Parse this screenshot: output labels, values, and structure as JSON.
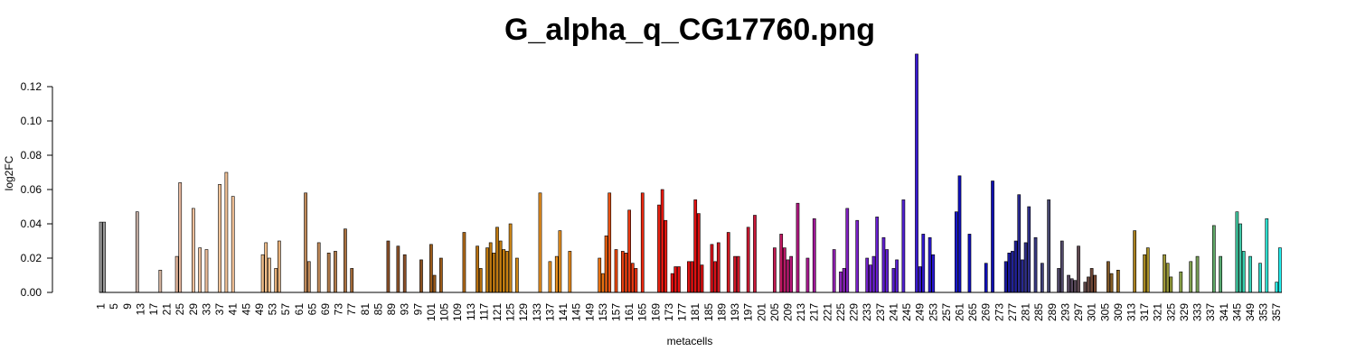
{
  "chart_data": {
    "type": "bar",
    "title": "G_alpha_q_CG17760.png",
    "xlabel": "metacells",
    "ylabel": "log2FC",
    "ylim": [
      0,
      0.14
    ],
    "yticks": [
      0.0,
      0.02,
      0.04,
      0.06,
      0.08,
      0.1,
      0.12
    ],
    "ytick_labels": [
      "0.00",
      "0.02",
      "0.04",
      "0.06",
      "0.08",
      "0.10",
      "0.12"
    ],
    "n_bars": 358,
    "xtick_labels": [
      "1",
      "5",
      "9",
      "13",
      "17",
      "21",
      "25",
      "29",
      "33",
      "37",
      "41",
      "45",
      "49",
      "53",
      "57",
      "61",
      "65",
      "69",
      "73",
      "77",
      "81",
      "85",
      "89",
      "93",
      "97",
      "101",
      "105",
      "109",
      "113",
      "117",
      "121",
      "125",
      "129",
      "133",
      "137",
      "141",
      "145",
      "149",
      "153",
      "157",
      "161",
      "165",
      "169",
      "173",
      "177",
      "181",
      "185",
      "189",
      "193",
      "197",
      "201",
      "205",
      "209",
      "213",
      "217",
      "221",
      "225",
      "229",
      "233",
      "237",
      "241",
      "245",
      "249",
      "253",
      "257",
      "261",
      "265",
      "269",
      "273",
      "277",
      "281",
      "285",
      "289",
      "293",
      "297",
      "301",
      "305",
      "309",
      "313",
      "317",
      "321",
      "325",
      "329",
      "333",
      "337",
      "341",
      "345",
      "349",
      "353",
      "357"
    ],
    "grid": false,
    "legend": "none",
    "bars": [
      {
        "x": 1,
        "y": 0.041,
        "color": "#999999"
      },
      {
        "x": 2,
        "y": 0.041,
        "color": "#999999"
      },
      {
        "x": 12,
        "y": 0.047,
        "color": "#c0aaa0"
      },
      {
        "x": 19,
        "y": 0.013,
        "color": "#d4b39e"
      },
      {
        "x": 24,
        "y": 0.021,
        "color": "#e6b89e"
      },
      {
        "x": 25,
        "y": 0.064,
        "color": "#e6b89e"
      },
      {
        "x": 29,
        "y": 0.049,
        "color": "#edbf9c"
      },
      {
        "x": 31,
        "y": 0.026,
        "color": "#edbf9c"
      },
      {
        "x": 33,
        "y": 0.025,
        "color": "#edbf9c"
      },
      {
        "x": 37,
        "y": 0.063,
        "color": "#f2c297"
      },
      {
        "x": 39,
        "y": 0.07,
        "color": "#f2c297"
      },
      {
        "x": 41,
        "y": 0.056,
        "color": "#f2c297"
      },
      {
        "x": 50,
        "y": 0.022,
        "color": "#f0be8a"
      },
      {
        "x": 51,
        "y": 0.029,
        "color": "#f0be8a"
      },
      {
        "x": 52,
        "y": 0.02,
        "color": "#f0be8a"
      },
      {
        "x": 54,
        "y": 0.014,
        "color": "#e6b07a"
      },
      {
        "x": 55,
        "y": 0.03,
        "color": "#e6b07a"
      },
      {
        "x": 63,
        "y": 0.058,
        "color": "#c08a5a"
      },
      {
        "x": 64,
        "y": 0.018,
        "color": "#c08a5a"
      },
      {
        "x": 67,
        "y": 0.029,
        "color": "#c08a5a"
      },
      {
        "x": 70,
        "y": 0.023,
        "color": "#b07a4a"
      },
      {
        "x": 72,
        "y": 0.024,
        "color": "#b07a4a"
      },
      {
        "x": 75,
        "y": 0.037,
        "color": "#a87040"
      },
      {
        "x": 77,
        "y": 0.014,
        "color": "#a06838"
      },
      {
        "x": 88,
        "y": 0.03,
        "color": "#8a5028"
      },
      {
        "x": 91,
        "y": 0.027,
        "color": "#8a5028"
      },
      {
        "x": 93,
        "y": 0.022,
        "color": "#8a5028"
      },
      {
        "x": 98,
        "y": 0.019,
        "color": "#8a5020"
      },
      {
        "x": 101,
        "y": 0.028,
        "color": "#9a5a1a"
      },
      {
        "x": 102,
        "y": 0.01,
        "color": "#9a5a1a"
      },
      {
        "x": 104,
        "y": 0.02,
        "color": "#9a5a1a"
      },
      {
        "x": 111,
        "y": 0.035,
        "color": "#b06a18"
      },
      {
        "x": 115,
        "y": 0.027,
        "color": "#b87010"
      },
      {
        "x": 116,
        "y": 0.014,
        "color": "#b87010"
      },
      {
        "x": 118,
        "y": 0.026,
        "color": "#c07a10"
      },
      {
        "x": 119,
        "y": 0.029,
        "color": "#c07a10"
      },
      {
        "x": 120,
        "y": 0.023,
        "color": "#c07a10"
      },
      {
        "x": 121,
        "y": 0.038,
        "color": "#c07a10"
      },
      {
        "x": 122,
        "y": 0.03,
        "color": "#c88010"
      },
      {
        "x": 123,
        "y": 0.025,
        "color": "#c88010"
      },
      {
        "x": 124,
        "y": 0.024,
        "color": "#c88010"
      },
      {
        "x": 125,
        "y": 0.04,
        "color": "#d08818"
      },
      {
        "x": 127,
        "y": 0.02,
        "color": "#d08818"
      },
      {
        "x": 134,
        "y": 0.058,
        "color": "#e89020"
      },
      {
        "x": 137,
        "y": 0.018,
        "color": "#e89020"
      },
      {
        "x": 139,
        "y": 0.021,
        "color": "#e89020"
      },
      {
        "x": 140,
        "y": 0.036,
        "color": "#e89020"
      },
      {
        "x": 143,
        "y": 0.024,
        "color": "#e88818"
      },
      {
        "x": 152,
        "y": 0.02,
        "color": "#e87010"
      },
      {
        "x": 153,
        "y": 0.011,
        "color": "#e87010"
      },
      {
        "x": 154,
        "y": 0.033,
        "color": "#e86010"
      },
      {
        "x": 155,
        "y": 0.058,
        "color": "#e85010"
      },
      {
        "x": 157,
        "y": 0.025,
        "color": "#e84810"
      },
      {
        "x": 159,
        "y": 0.024,
        "color": "#e84010"
      },
      {
        "x": 160,
        "y": 0.023,
        "color": "#e84010"
      },
      {
        "x": 161,
        "y": 0.048,
        "color": "#e83810"
      },
      {
        "x": 162,
        "y": 0.017,
        "color": "#e83810"
      },
      {
        "x": 163,
        "y": 0.014,
        "color": "#e83010"
      },
      {
        "x": 165,
        "y": 0.058,
        "color": "#e82810"
      },
      {
        "x": 170,
        "y": 0.051,
        "color": "#e82010"
      },
      {
        "x": 171,
        "y": 0.06,
        "color": "#e81810"
      },
      {
        "x": 172,
        "y": 0.042,
        "color": "#e81810"
      },
      {
        "x": 174,
        "y": 0.011,
        "color": "#e81010"
      },
      {
        "x": 175,
        "y": 0.015,
        "color": "#e81010"
      },
      {
        "x": 176,
        "y": 0.015,
        "color": "#e81010"
      },
      {
        "x": 179,
        "y": 0.018,
        "color": "#e01010"
      },
      {
        "x": 180,
        "y": 0.018,
        "color": "#e01010"
      },
      {
        "x": 181,
        "y": 0.054,
        "color": "#e01010"
      },
      {
        "x": 182,
        "y": 0.046,
        "color": "#d81010"
      },
      {
        "x": 183,
        "y": 0.016,
        "color": "#d81010"
      },
      {
        "x": 186,
        "y": 0.028,
        "color": "#d81018"
      },
      {
        "x": 187,
        "y": 0.018,
        "color": "#d81018"
      },
      {
        "x": 188,
        "y": 0.029,
        "color": "#d01820"
      },
      {
        "x": 191,
        "y": 0.035,
        "color": "#d01820"
      },
      {
        "x": 193,
        "y": 0.021,
        "color": "#d01828"
      },
      {
        "x": 194,
        "y": 0.021,
        "color": "#d01828"
      },
      {
        "x": 197,
        "y": 0.038,
        "color": "#c81830"
      },
      {
        "x": 199,
        "y": 0.045,
        "color": "#c81838"
      },
      {
        "x": 205,
        "y": 0.026,
        "color": "#c01850"
      },
      {
        "x": 207,
        "y": 0.034,
        "color": "#c01860"
      },
      {
        "x": 208,
        "y": 0.026,
        "color": "#b81868"
      },
      {
        "x": 209,
        "y": 0.019,
        "color": "#b81870"
      },
      {
        "x": 210,
        "y": 0.021,
        "color": "#b81878"
      },
      {
        "x": 212,
        "y": 0.052,
        "color": "#b01880"
      },
      {
        "x": 215,
        "y": 0.02,
        "color": "#a81890"
      },
      {
        "x": 217,
        "y": 0.043,
        "color": "#a01898"
      },
      {
        "x": 223,
        "y": 0.025,
        "color": "#9020b0"
      },
      {
        "x": 225,
        "y": 0.012,
        "color": "#8820b8"
      },
      {
        "x": 226,
        "y": 0.014,
        "color": "#8820b8"
      },
      {
        "x": 227,
        "y": 0.049,
        "color": "#8020c0"
      },
      {
        "x": 230,
        "y": 0.042,
        "color": "#7820c8"
      },
      {
        "x": 233,
        "y": 0.02,
        "color": "#7020c8"
      },
      {
        "x": 234,
        "y": 0.016,
        "color": "#7020d0"
      },
      {
        "x": 235,
        "y": 0.021,
        "color": "#6820d0"
      },
      {
        "x": 236,
        "y": 0.044,
        "color": "#6820d0"
      },
      {
        "x": 238,
        "y": 0.032,
        "color": "#6020d0"
      },
      {
        "x": 239,
        "y": 0.025,
        "color": "#6020d0"
      },
      {
        "x": 241,
        "y": 0.014,
        "color": "#5820d0"
      },
      {
        "x": 242,
        "y": 0.019,
        "color": "#5820d0"
      },
      {
        "x": 244,
        "y": 0.054,
        "color": "#5020d0"
      },
      {
        "x": 248,
        "y": 0.139,
        "color": "#3818d0"
      },
      {
        "x": 249,
        "y": 0.015,
        "color": "#3818d0"
      },
      {
        "x": 250,
        "y": 0.034,
        "color": "#3018d0"
      },
      {
        "x": 252,
        "y": 0.032,
        "color": "#2818d0"
      },
      {
        "x": 253,
        "y": 0.022,
        "color": "#2818d0"
      },
      {
        "x": 260,
        "y": 0.047,
        "color": "#1818c8"
      },
      {
        "x": 261,
        "y": 0.068,
        "color": "#1010c0"
      },
      {
        "x": 264,
        "y": 0.034,
        "color": "#1010c0"
      },
      {
        "x": 269,
        "y": 0.017,
        "color": "#1010b8"
      },
      {
        "x": 271,
        "y": 0.065,
        "color": "#1010b0"
      },
      {
        "x": 275,
        "y": 0.018,
        "color": "#1818a0"
      },
      {
        "x": 276,
        "y": 0.023,
        "color": "#1818a0"
      },
      {
        "x": 277,
        "y": 0.024,
        "color": "#202098"
      },
      {
        "x": 278,
        "y": 0.03,
        "color": "#202098"
      },
      {
        "x": 279,
        "y": 0.057,
        "color": "#282890"
      },
      {
        "x": 280,
        "y": 0.019,
        "color": "#282890"
      },
      {
        "x": 281,
        "y": 0.029,
        "color": "#303088"
      },
      {
        "x": 282,
        "y": 0.05,
        "color": "#303088"
      },
      {
        "x": 284,
        "y": 0.032,
        "color": "#383880"
      },
      {
        "x": 286,
        "y": 0.017,
        "color": "#404078"
      },
      {
        "x": 288,
        "y": 0.054,
        "color": "#484870"
      },
      {
        "x": 291,
        "y": 0.014,
        "color": "#504868"
      },
      {
        "x": 292,
        "y": 0.03,
        "color": "#504868"
      },
      {
        "x": 294,
        "y": 0.01,
        "color": "#584860"
      },
      {
        "x": 295,
        "y": 0.008,
        "color": "#584860"
      },
      {
        "x": 296,
        "y": 0.007,
        "color": "#584858"
      },
      {
        "x": 297,
        "y": 0.027,
        "color": "#604850"
      },
      {
        "x": 299,
        "y": 0.006,
        "color": "#604848"
      },
      {
        "x": 300,
        "y": 0.009,
        "color": "#684840"
      },
      {
        "x": 301,
        "y": 0.014,
        "color": "#704838"
      },
      {
        "x": 302,
        "y": 0.01,
        "color": "#784830"
      },
      {
        "x": 306,
        "y": 0.018,
        "color": "#805828"
      },
      {
        "x": 307,
        "y": 0.011,
        "color": "#886028"
      },
      {
        "x": 309,
        "y": 0.013,
        "color": "#906820"
      },
      {
        "x": 314,
        "y": 0.036,
        "color": "#a88020"
      },
      {
        "x": 317,
        "y": 0.022,
        "color": "#a88820"
      },
      {
        "x": 318,
        "y": 0.026,
        "color": "#a89028"
      },
      {
        "x": 323,
        "y": 0.022,
        "color": "#a09838"
      },
      {
        "x": 324,
        "y": 0.017,
        "color": "#989838"
      },
      {
        "x": 325,
        "y": 0.009,
        "color": "#909838"
      },
      {
        "x": 328,
        "y": 0.012,
        "color": "#88a048"
      },
      {
        "x": 331,
        "y": 0.018,
        "color": "#80a050"
      },
      {
        "x": 333,
        "y": 0.021,
        "color": "#78a058"
      },
      {
        "x": 338,
        "y": 0.039,
        "color": "#60a868"
      },
      {
        "x": 340,
        "y": 0.021,
        "color": "#58a870"
      },
      {
        "x": 345,
        "y": 0.047,
        "color": "#40c8a0"
      },
      {
        "x": 346,
        "y": 0.04,
        "color": "#40c8a8"
      },
      {
        "x": 347,
        "y": 0.024,
        "color": "#38d0b0"
      },
      {
        "x": 349,
        "y": 0.021,
        "color": "#38d0b8"
      },
      {
        "x": 352,
        "y": 0.017,
        "color": "#30d8c8"
      },
      {
        "x": 354,
        "y": 0.043,
        "color": "#30e0d0"
      },
      {
        "x": 357,
        "y": 0.006,
        "color": "#28e8e0"
      },
      {
        "x": 358,
        "y": 0.026,
        "color": "#20f0f0"
      }
    ]
  }
}
